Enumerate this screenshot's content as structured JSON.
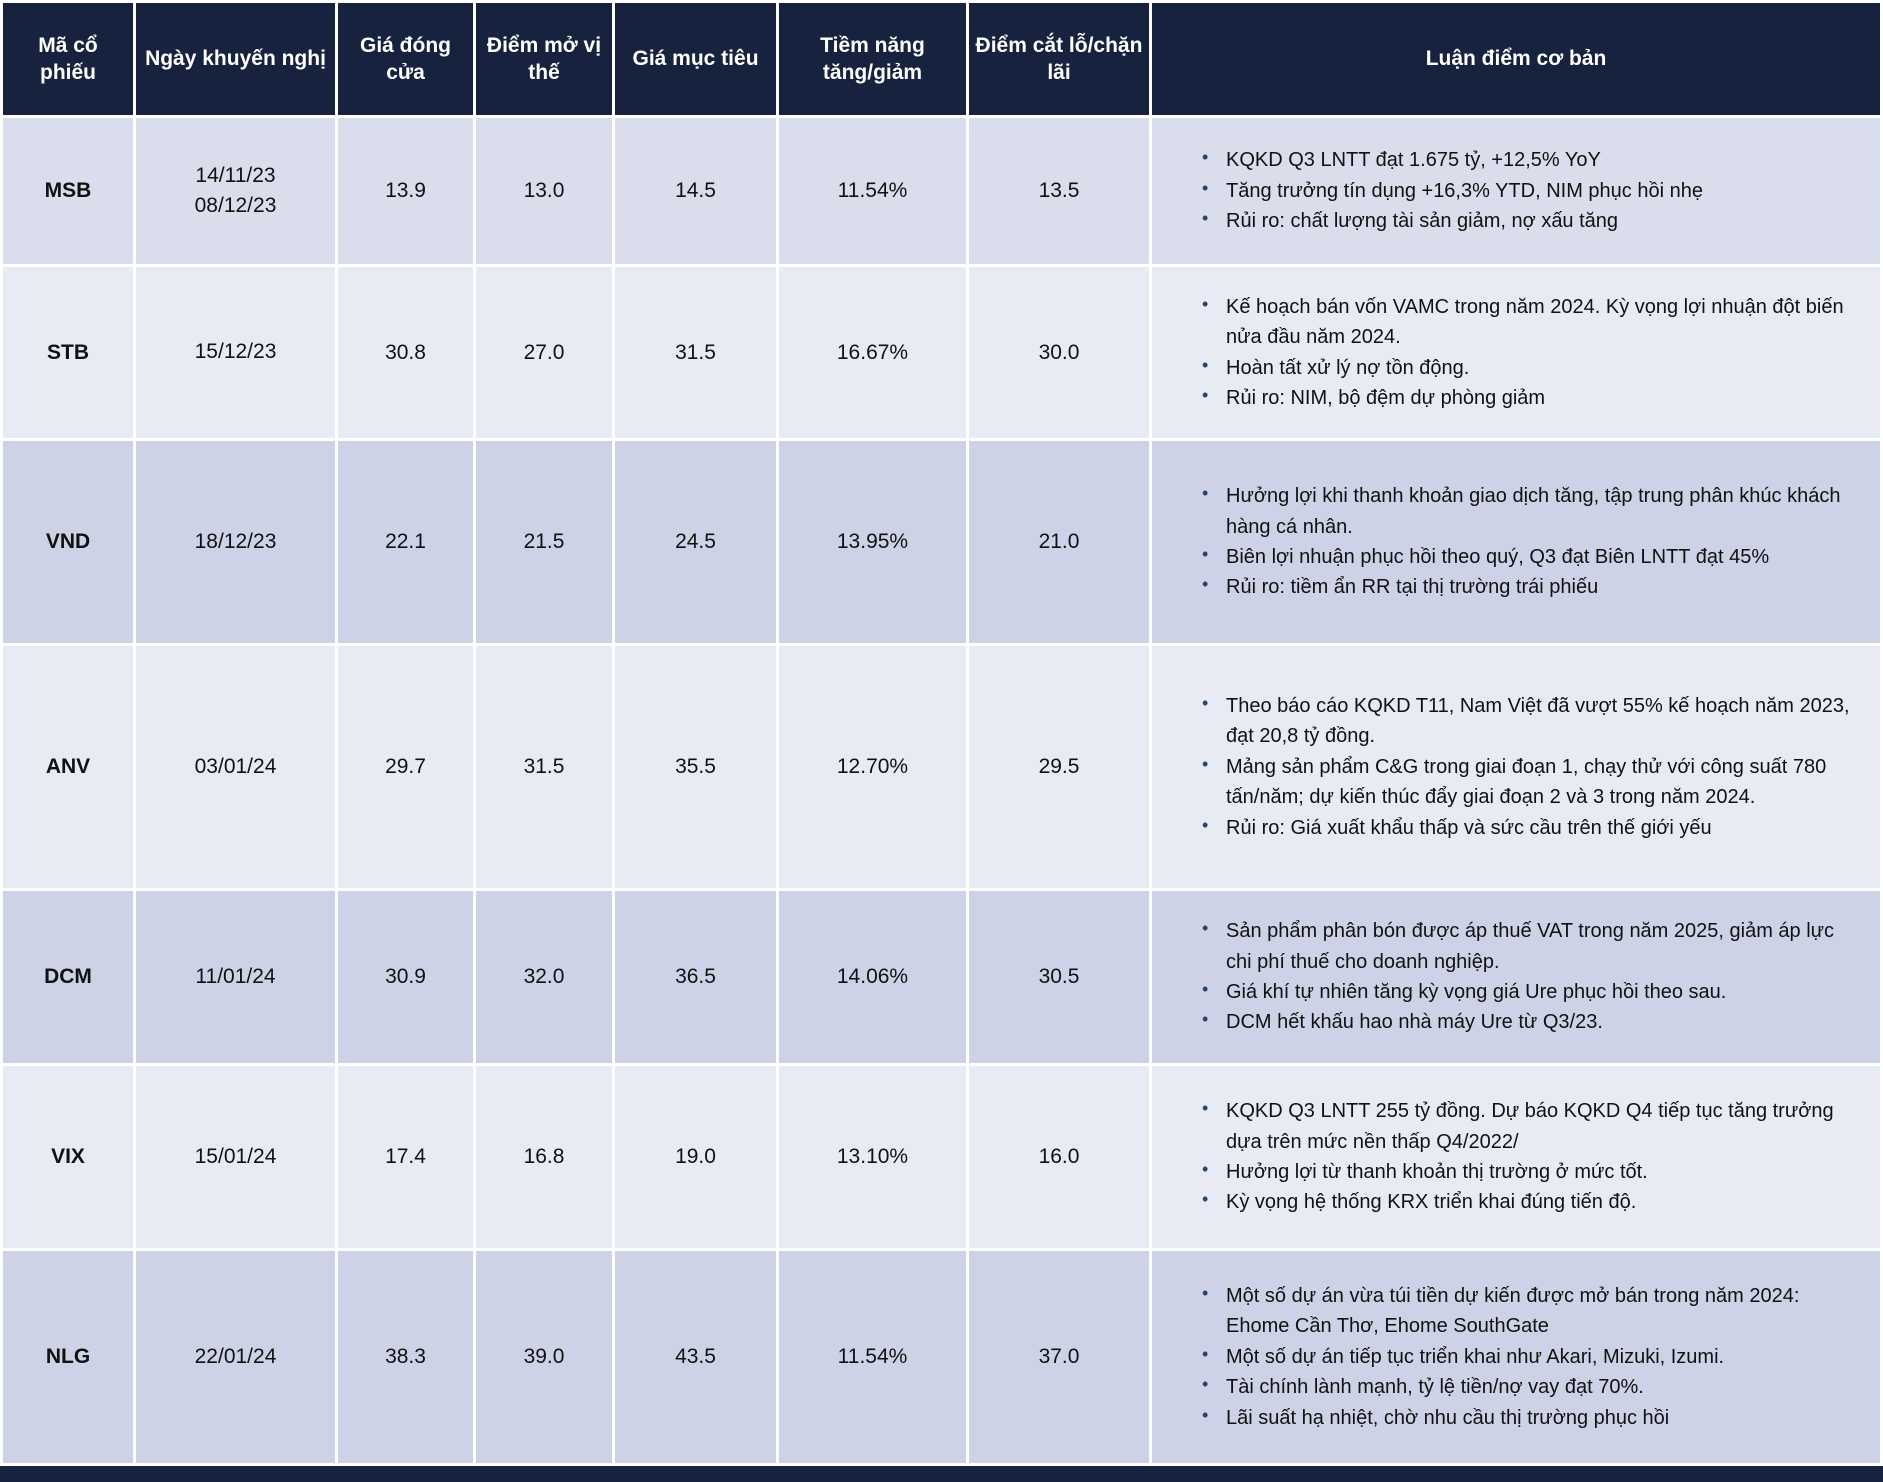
{
  "colors": {
    "header_bg": "#17223f",
    "grid": "#ffffff",
    "bullet": "#24456e",
    "band_msb": "#d9ddec",
    "band_light": "#e9ebf4",
    "band_dark": "#cdd2e6",
    "text": "#111111",
    "header_text": "#ffffff"
  },
  "table": {
    "columns": [
      {
        "key": "code",
        "label": "Mã cổ phiếu"
      },
      {
        "key": "date",
        "label": "Ngày khuyến nghị"
      },
      {
        "key": "close",
        "label": "Giá đóng cửa"
      },
      {
        "key": "entry",
        "label": "Điểm mở vị thế"
      },
      {
        "key": "target",
        "label": "Giá mục tiêu"
      },
      {
        "key": "upside",
        "label": "Tiềm năng tăng/giảm"
      },
      {
        "key": "stop",
        "label": "Điểm cắt lỗ/chặn lãi"
      },
      {
        "key": "thesis",
        "label": "Luận điểm cơ bản"
      }
    ],
    "rows": [
      {
        "code": "MSB",
        "dates": [
          "14/11/23",
          "08/12/23"
        ],
        "close": "13.9",
        "entry": "13.0",
        "target": "14.5",
        "upside": "11.54%",
        "stop": "13.5",
        "band": "#d9ddec",
        "thesis": [
          "KQKD Q3 LNTT đạt 1.675 tỷ, +12,5% YoY",
          "Tăng trưởng tín dụng +16,3% YTD, NIM phục hồi nhẹ",
          "Rủi ro: chất lượng tài sản giảm, nợ xấu tăng"
        ]
      },
      {
        "code": "STB",
        "dates": [
          "15/12/23"
        ],
        "close": "30.8",
        "entry": "27.0",
        "target": "31.5",
        "upside": "16.67%",
        "stop": "30.0",
        "band": "#e9ebf4",
        "thesis": [
          "Kế hoạch bán vốn VAMC trong năm 2024. Kỳ vọng lợi nhuận đột biến nửa đầu năm 2024.",
          "Hoàn tất xử lý nợ tồn động.",
          "Rủi ro: NIM, bộ đệm dự phòng giảm"
        ]
      },
      {
        "code": "VND",
        "dates": [
          "18/12/23"
        ],
        "close": "22.1",
        "entry": "21.5",
        "target": "24.5",
        "upside": "13.95%",
        "stop": "21.0",
        "band": "#cdd2e6",
        "thesis": [
          "Hưởng lợi khi thanh khoản giao dịch tăng, tập trung phân khúc khách hàng cá nhân.",
          "Biên lợi nhuận phục hồi theo quý, Q3 đạt Biên LNTT đạt 45%",
          "Rủi ro: tiềm ẩn RR tại thị trường trái phiếu"
        ]
      },
      {
        "code": "ANV",
        "dates": [
          "03/01/24"
        ],
        "close": "29.7",
        "entry": "31.5",
        "target": "35.5",
        "upside": "12.70%",
        "stop": "29.5",
        "band": "#e9ebf4",
        "thesis": [
          "Theo báo cáo KQKD T11, Nam Việt đã vượt 55% kế hoạch năm 2023, đạt 20,8 tỷ đồng.",
          "Mảng sản phẩm C&G trong giai đoạn 1, chạy thử với công suất 780 tấn/năm; dự kiến thúc đẩy giai đoạn 2 và 3 trong năm 2024.",
          "Rủi ro: Giá xuất khẩu thấp và sức cầu trên thế giới yếu"
        ]
      },
      {
        "code": "DCM",
        "dates": [
          "11/01/24"
        ],
        "close": "30.9",
        "entry": "32.0",
        "target": "36.5",
        "upside": "14.06%",
        "stop": "30.5",
        "band": "#cdd2e6",
        "thesis": [
          "Sản phẩm phân bón được áp thuế VAT trong năm 2025, giảm áp lực chi phí thuế cho doanh nghiệp.",
          "Giá khí tự nhiên tăng kỳ vọng giá Ure phục hồi theo sau.",
          "DCM hết khấu hao nhà máy Ure từ Q3/23."
        ]
      },
      {
        "code": "VIX",
        "dates": [
          "15/01/24"
        ],
        "close": "17.4",
        "entry": "16.8",
        "target": "19.0",
        "upside": "13.10%",
        "stop": "16.0",
        "band": "#e9ebf4",
        "thesis": [
          "KQKD Q3 LNTT 255 tỷ đồng. Dự báo KQKD Q4 tiếp tục tăng trưởng dựa trên mức nền thấp Q4/2022/",
          " Hưởng lợi từ thanh khoản thị trường ở mức tốt.",
          "Kỳ vọng hệ thống KRX triển khai đúng tiến độ."
        ]
      },
      {
        "code": "NLG",
        "dates": [
          "22/01/24"
        ],
        "close": "38.3",
        "entry": "39.0",
        "target": "43.5",
        "upside": "11.54%",
        "stop": "37.0",
        "band": "#cdd2e6",
        "thesis": [
          "Một số dự án vừa túi tiền dự kiến được mở bán trong năm 2024: Ehome Cần Thơ, Ehome SouthGate",
          "Một số dự án tiếp tục triển khai như Akari, Mizuki, Izumi.",
          "Tài chính lành mạnh, tỷ lệ tiền/nợ vay đạt 70%.",
          "Lãi suất hạ nhiệt, chờ nhu cầu thị trường phục hồi"
        ]
      }
    ]
  }
}
